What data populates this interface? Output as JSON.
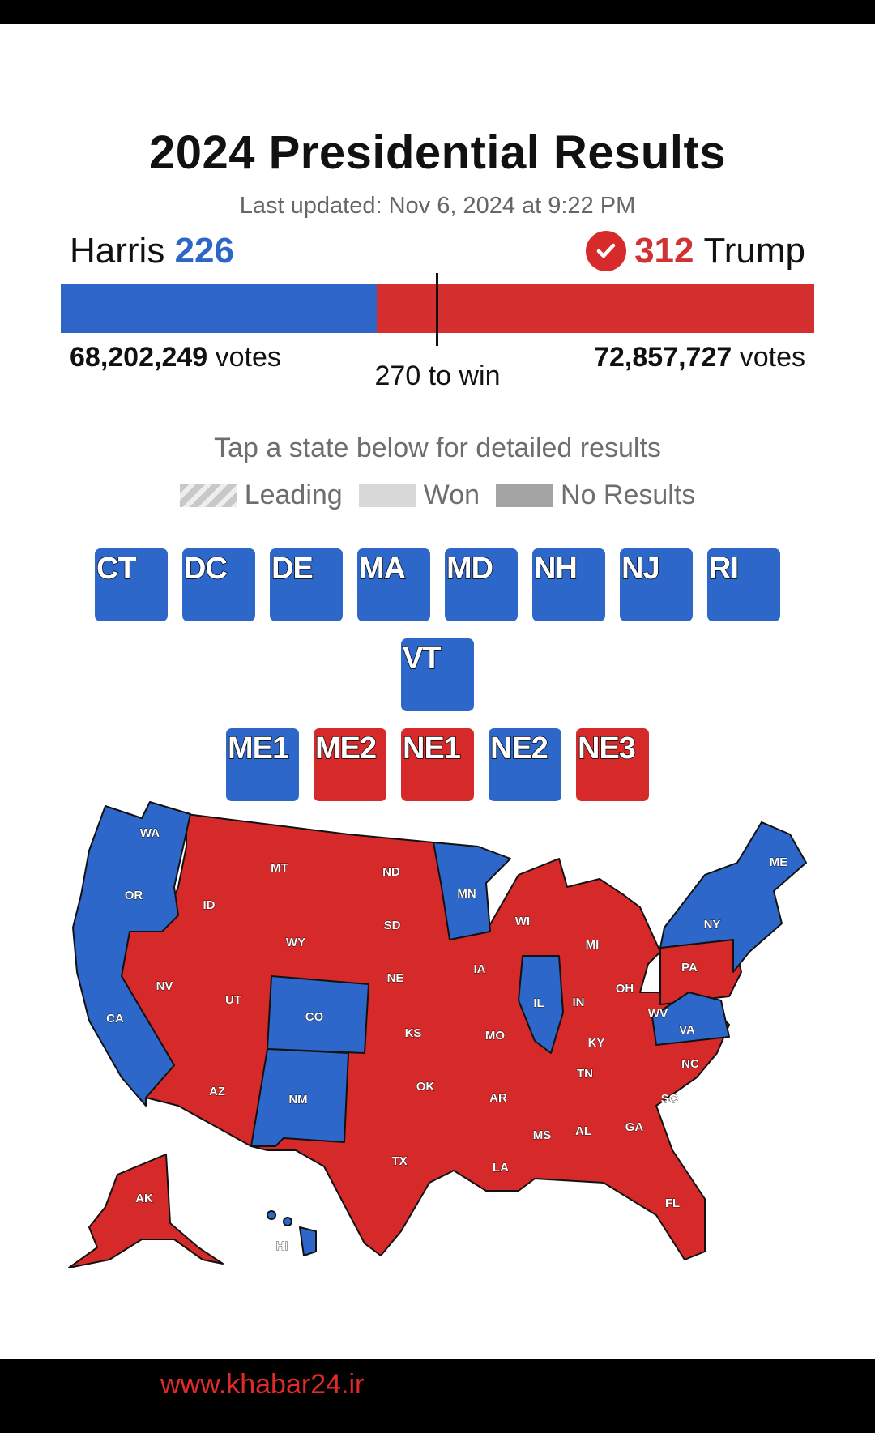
{
  "title": "2024 Presidential Results",
  "updated": "Last updated: Nov 6, 2024 at 9:22 PM",
  "harris": {
    "name": "Harris",
    "electoral": "226",
    "votes_num": "68,202,249",
    "votes_word": "votes",
    "color": "#2d67c6"
  },
  "trump": {
    "name": "Trump",
    "electoral": "312",
    "votes_num": "72,857,727",
    "votes_word": "votes",
    "color": "#d03333"
  },
  "bar": {
    "harris_share": 0.4195,
    "threshold_label": "270 to win"
  },
  "instructions": "Tap a state below for detailed results",
  "legend": {
    "leading": "Leading",
    "won": "Won",
    "none": "No Results"
  },
  "small_states": [
    {
      "code": "CT",
      "party": "blue"
    },
    {
      "code": "DC",
      "party": "blue"
    },
    {
      "code": "DE",
      "party": "blue"
    },
    {
      "code": "MA",
      "party": "blue"
    },
    {
      "code": "MD",
      "party": "blue"
    },
    {
      "code": "NH",
      "party": "blue"
    },
    {
      "code": "NJ",
      "party": "blue"
    },
    {
      "code": "RI",
      "party": "blue"
    },
    {
      "code": "VT",
      "party": "blue"
    }
  ],
  "districts": [
    {
      "code": "ME1",
      "party": "blue"
    },
    {
      "code": "ME2",
      "party": "red"
    },
    {
      "code": "NE1",
      "party": "red"
    },
    {
      "code": "NE2",
      "party": "blue"
    },
    {
      "code": "NE3",
      "party": "red"
    }
  ],
  "map_labels": [
    "WA",
    "OR",
    "CA",
    "ID",
    "NV",
    "MT",
    "WY",
    "UT",
    "AZ",
    "CO",
    "NM",
    "ND",
    "SD",
    "NE",
    "KS",
    "OK",
    "TX",
    "MN",
    "IA",
    "MO",
    "AR",
    "LA",
    "WI",
    "IL",
    "MI",
    "IN",
    "OH",
    "KY",
    "TN",
    "MS",
    "AL",
    "GA",
    "FL",
    "SC",
    "NC",
    "VA",
    "WV",
    "PA",
    "NY",
    "ME",
    "AK",
    "HI"
  ],
  "footer": {
    "site": "www.khabar24.ir"
  }
}
